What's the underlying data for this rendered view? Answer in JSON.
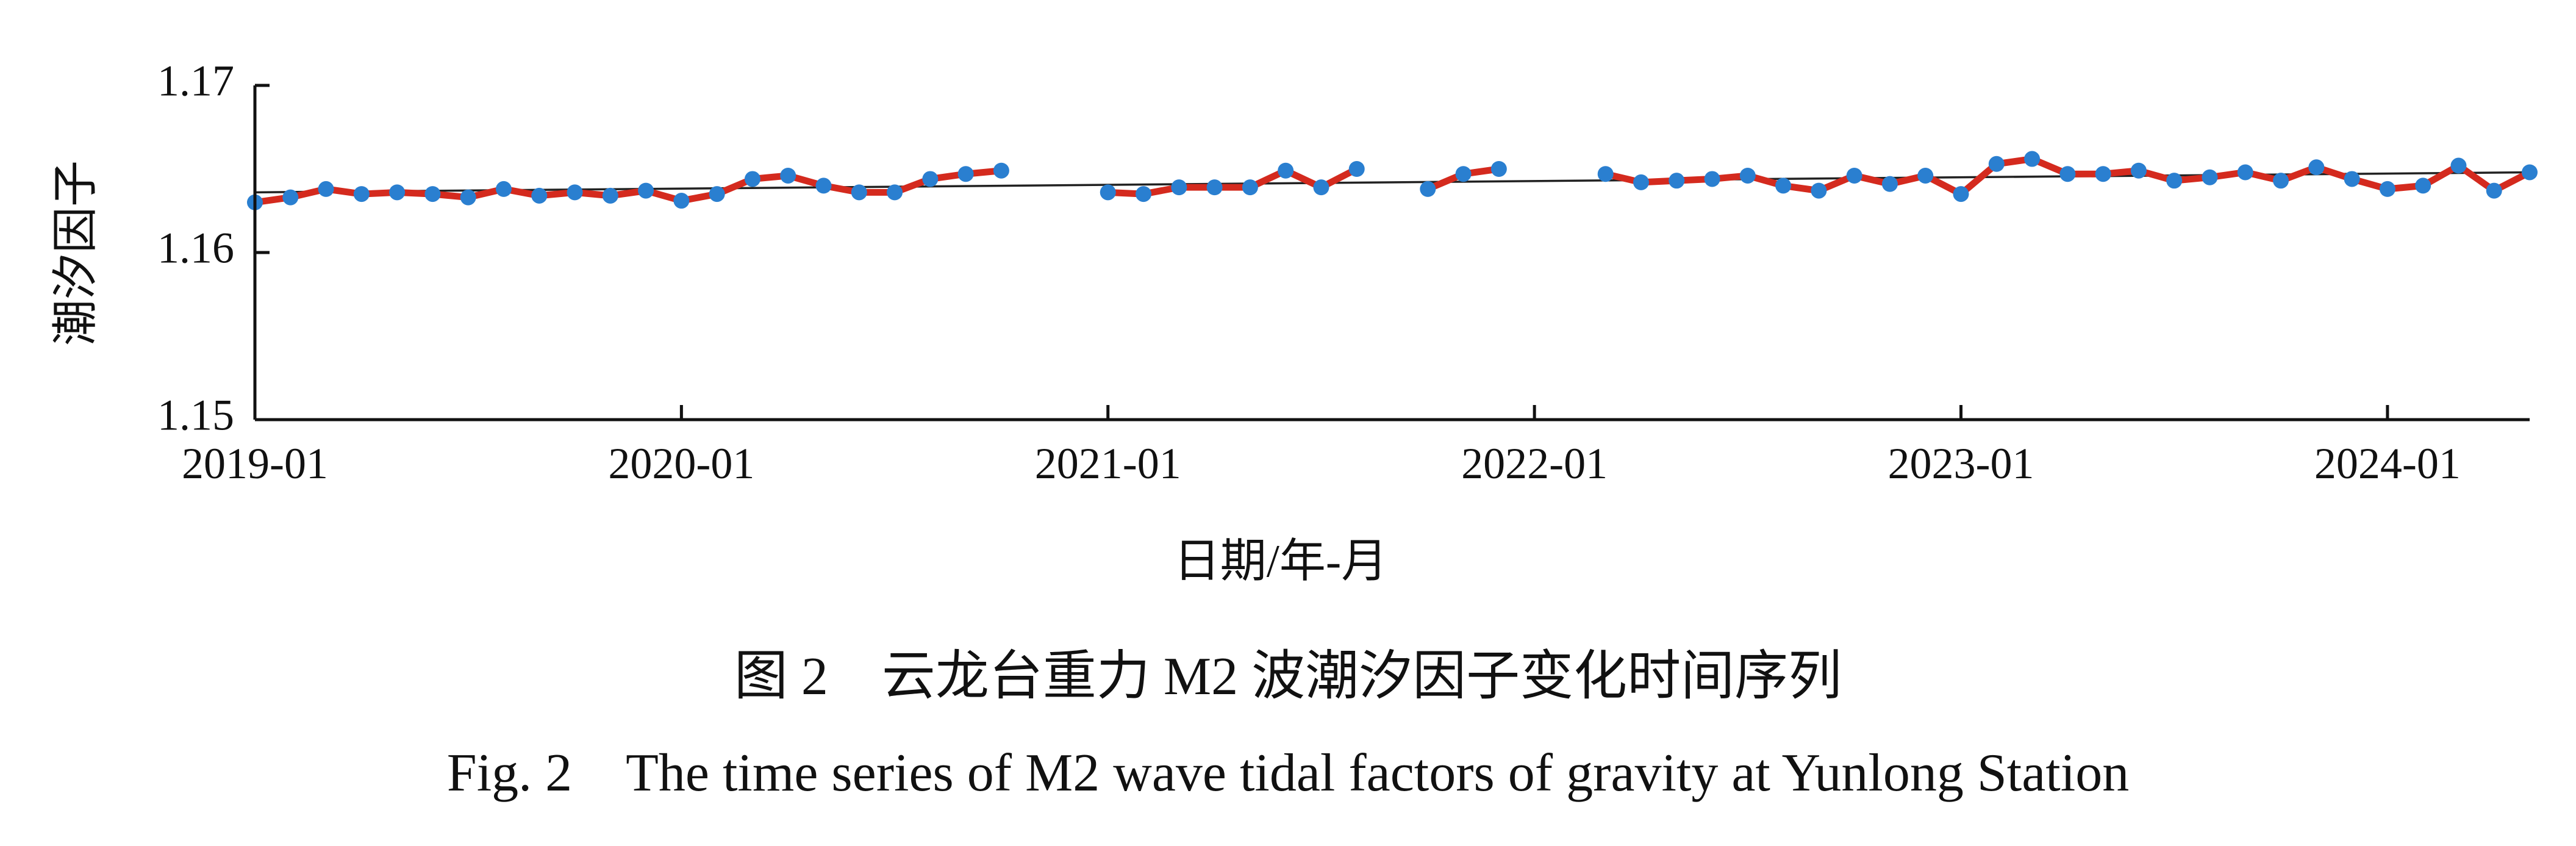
{
  "chart_data": {
    "type": "line",
    "xlabel": "日期/年-月",
    "ylabel": "潮汐因子",
    "ylim": [
      1.15,
      1.17
    ],
    "yticks": [
      "1.15",
      "1.16",
      "1.17"
    ],
    "xlim": [
      "2019-01",
      "2024-05"
    ],
    "xticks": [
      "2019-01",
      "2020-01",
      "2021-01",
      "2022-01",
      "2023-01",
      "2024-01"
    ],
    "grid": false,
    "legend": "none",
    "colors": {
      "series_line": "#d42a1e",
      "marker": "#2a7fd0",
      "trend": "#222222",
      "axis": "#111111"
    },
    "series": [
      {
        "data": [
          [
            "2019-01",
            1.163
          ],
          [
            "2019-02",
            1.1633
          ],
          [
            "2019-03",
            1.1638
          ],
          [
            "2019-04",
            1.1635
          ],
          [
            "2019-05",
            1.1636
          ],
          [
            "2019-06",
            1.1635
          ],
          [
            "2019-07",
            1.1633
          ],
          [
            "2019-08",
            1.1638
          ],
          [
            "2019-09",
            1.1634
          ],
          [
            "2019-10",
            1.1636
          ],
          [
            "2019-11",
            1.1634
          ],
          [
            "2019-12",
            1.1637
          ],
          [
            "2020-01",
            1.1631
          ],
          [
            "2020-02",
            1.1635
          ],
          [
            "2020-03",
            1.1644
          ],
          [
            "2020-04",
            1.1646
          ],
          [
            "2020-05",
            1.164
          ],
          [
            "2020-06",
            1.1636
          ],
          [
            "2020-07",
            1.1636
          ],
          [
            "2020-08",
            1.1644
          ],
          [
            "2020-09",
            1.1647
          ],
          [
            "2020-10",
            1.1649
          ],
          [
            "2020-11",
            null
          ],
          [
            "2020-12",
            null
          ],
          [
            "2021-01",
            1.1636
          ],
          [
            "2021-02",
            1.1635
          ],
          [
            "2021-03",
            1.1639
          ],
          [
            "2021-04",
            1.1639
          ],
          [
            "2021-05",
            1.1639
          ],
          [
            "2021-06",
            1.1649
          ],
          [
            "2021-07",
            1.1639
          ],
          [
            "2021-08",
            1.165
          ],
          [
            "2021-09",
            null
          ],
          [
            "2021-10",
            1.1638
          ],
          [
            "2021-11",
            1.1647
          ],
          [
            "2021-12",
            1.165
          ],
          [
            "2022-01",
            null
          ],
          [
            "2022-02",
            null
          ],
          [
            "2022-03",
            1.1647
          ],
          [
            "2022-04",
            1.1642
          ],
          [
            "2022-05",
            1.1643
          ],
          [
            "2022-06",
            1.1644
          ],
          [
            "2022-07",
            1.1646
          ],
          [
            "2022-08",
            1.164
          ],
          [
            "2022-09",
            1.1637
          ],
          [
            "2022-10",
            1.1646
          ],
          [
            "2022-11",
            1.1641
          ],
          [
            "2022-12",
            1.1646
          ],
          [
            "2023-01",
            1.1635
          ],
          [
            "2023-02",
            1.1653
          ],
          [
            "2023-03",
            1.1656
          ],
          [
            "2023-04",
            1.1647
          ],
          [
            "2023-05",
            1.1647
          ],
          [
            "2023-06",
            1.1649
          ],
          [
            "2023-07",
            1.1643
          ],
          [
            "2023-08",
            1.1645
          ],
          [
            "2023-09",
            1.1648
          ],
          [
            "2023-10",
            1.1643
          ],
          [
            "2023-11",
            1.1651
          ],
          [
            "2023-12",
            1.1644
          ],
          [
            "2024-01",
            1.1638
          ],
          [
            "2024-02",
            1.164
          ],
          [
            "2024-03",
            1.1652
          ],
          [
            "2024-04",
            1.1637
          ],
          [
            "2024-05",
            1.1648
          ]
        ]
      }
    ],
    "trend_line": {
      "start": [
        "2019-01",
        1.1636
      ],
      "end": [
        "2024-05",
        1.1648
      ]
    }
  },
  "caption": {
    "cn": "图 2　云龙台重力 M2 波潮汐因子变化时间序列",
    "en": "Fig. 2　The time series of M2 wave tidal factors of gravity at Yunlong Station"
  }
}
